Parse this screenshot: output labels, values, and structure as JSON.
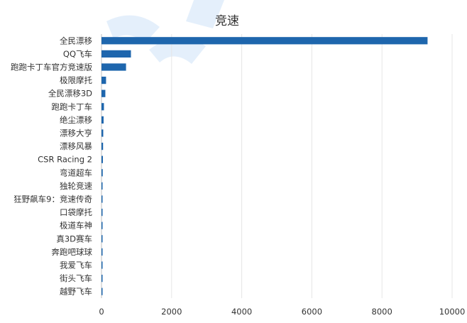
{
  "chart_data": {
    "type": "bar",
    "orientation": "horizontal",
    "title": "竞速",
    "categories": [
      "全民漂移",
      "QQ飞车",
      "跑跑卡丁车官方竞速版",
      "极限摩托",
      "全民漂移3D",
      "跑跑卡丁车",
      "绝尘漂移",
      "漂移大亨",
      "漂移风暴",
      "CSR Racing 2",
      "弯道超车",
      "独轮竞速",
      "狂野飙车9：竞速传奇",
      "口袋摩托",
      "极道车神",
      "真3D赛车",
      "奔跑吧球球",
      "我爱飞车",
      "街头飞车",
      "越野飞车"
    ],
    "values": [
      9300,
      840,
      700,
      130,
      110,
      70,
      60,
      50,
      45,
      40,
      35,
      30,
      28,
      25,
      22,
      18,
      15,
      10,
      8,
      5
    ],
    "xlim": [
      0,
      10000
    ],
    "xticks": [
      0,
      2000,
      4000,
      6000,
      8000,
      10000
    ],
    "xtick_labels": [
      "0",
      "2000",
      "4000",
      "6000",
      "8000",
      "10000"
    ],
    "grid": true,
    "legend": "none",
    "bar_color": "#1e66ad"
  }
}
